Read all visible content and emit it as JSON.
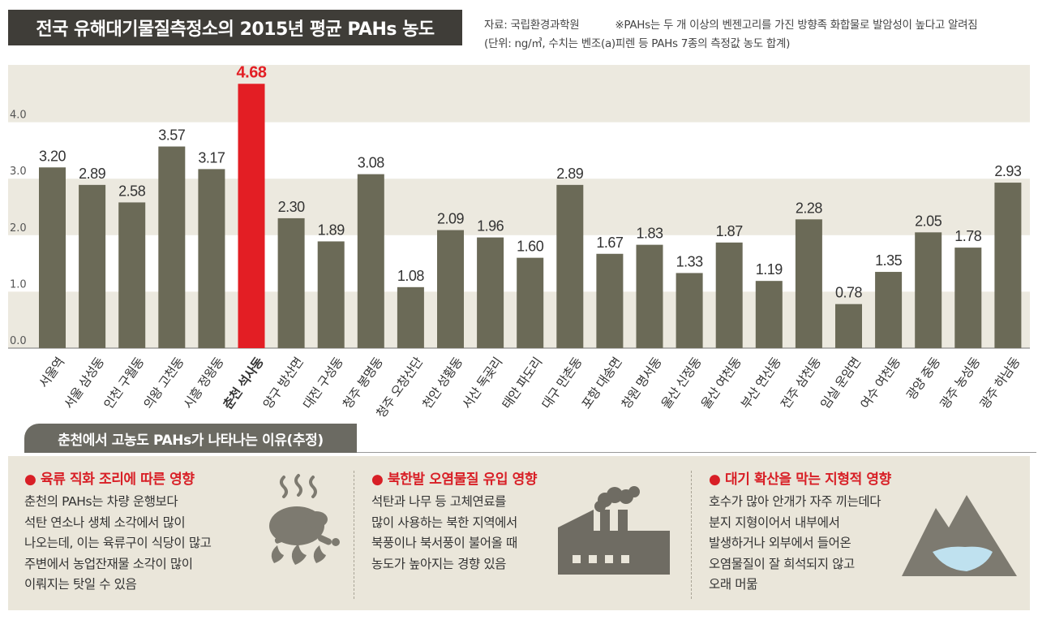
{
  "header": {
    "title": "전국 유해대기물질측정소의 2015년 평균 PAHs 농도",
    "source": "자료: 국립환경과학원",
    "note": "※PAHs는 두 개 이상의 벤젠고리를 가진 방향족 화합물로 발암성이 높다고 알려짐",
    "unit": "(단위: ng/㎥, 수치는 벤조(a)피렌 등 PAHs 7종의 측정값 농도 합계)"
  },
  "chart_data": {
    "type": "bar",
    "title": "전국 유해대기물질측정소의 2015년 평균 PAHs 농도",
    "ylim": [
      0,
      4.8
    ],
    "yticks": [
      "0.0",
      "1.0",
      "2.0",
      "3.0",
      "4.0"
    ],
    "highlight_index": 5,
    "categories": [
      "서울역",
      "서울 삼성동",
      "인천 구월동",
      "의왕 고천동",
      "시흥 정왕동",
      "춘천 석사동",
      "양구 방산면",
      "대전 구성동",
      "청주 봉명동",
      "청주 오창산단",
      "천안 성황동",
      "서산 독곶리",
      "태안 파도리",
      "대구 만촌동",
      "포항 대송면",
      "창원 명서동",
      "울산 신정동",
      "울산 여천동",
      "부산 연산동",
      "전주 삼천동",
      "임실 운암면",
      "여수 여천동",
      "광양 중동",
      "광주 농성동",
      "광주 하남동"
    ],
    "value_labels": [
      "3.20",
      "2.89",
      "2.58",
      "3.57",
      "3.17",
      "4.68",
      "2.30",
      "1.89",
      "3.08",
      "1.08",
      "2.09",
      "1.96",
      "1.60",
      "2.89",
      "1.67",
      "1.83",
      "1.33",
      "1.87",
      "1.19",
      "2.28",
      "0.78",
      "1.35",
      "2.05",
      "1.78",
      "2.93"
    ],
    "values": [
      3.2,
      2.89,
      2.58,
      3.57,
      3.17,
      4.68,
      2.3,
      1.89,
      3.08,
      1.08,
      2.09,
      1.96,
      1.6,
      2.89,
      1.67,
      1.83,
      1.33,
      1.87,
      1.19,
      2.28,
      0.78,
      1.35,
      2.05,
      1.78,
      2.93
    ],
    "grid": "alternating bands",
    "colors": {
      "bar": "#6b6a57",
      "highlight": "#e31e24",
      "band": "#ece9df",
      "label": "#333333",
      "highlight_label": "#e31e24"
    }
  },
  "reasons": {
    "header": "춘천에서 고농도 PAHs가 나타나는 이유(추정)",
    "items": [
      {
        "title": "● 육류 직화 조리에 따른 영향",
        "body": "춘천의 PAHs는 차량 운행보다\n석탄 연소나 생체 소각에서 많이\n나오는데, 이는 육류구이 식당이 많고\n주변에서 농업잔재물 소각이 많이\n이뤄지는 탓일 수 있음",
        "icon": "roast-chicken-icon"
      },
      {
        "title": "● 북한발 오염물질 유입 영향",
        "body": "석탄과 나무 등 고체연료를\n많이 사용하는 북한 지역에서\n북풍이나 북서풍이 불어올 때\n농도가 높아지는 경향 있음",
        "icon": "factory-smoke-icon"
      },
      {
        "title": "● 대기 확산을 막는 지형적 영향",
        "body": "호수가 많아 안개가 자주 끼는데다\n분지 지형이어서 내부에서\n발생하거나 외부에서 들어온\n오염물질이 잘 희석되지 않고\n오래 머묾",
        "icon": "mountain-basin-icon"
      }
    ]
  }
}
